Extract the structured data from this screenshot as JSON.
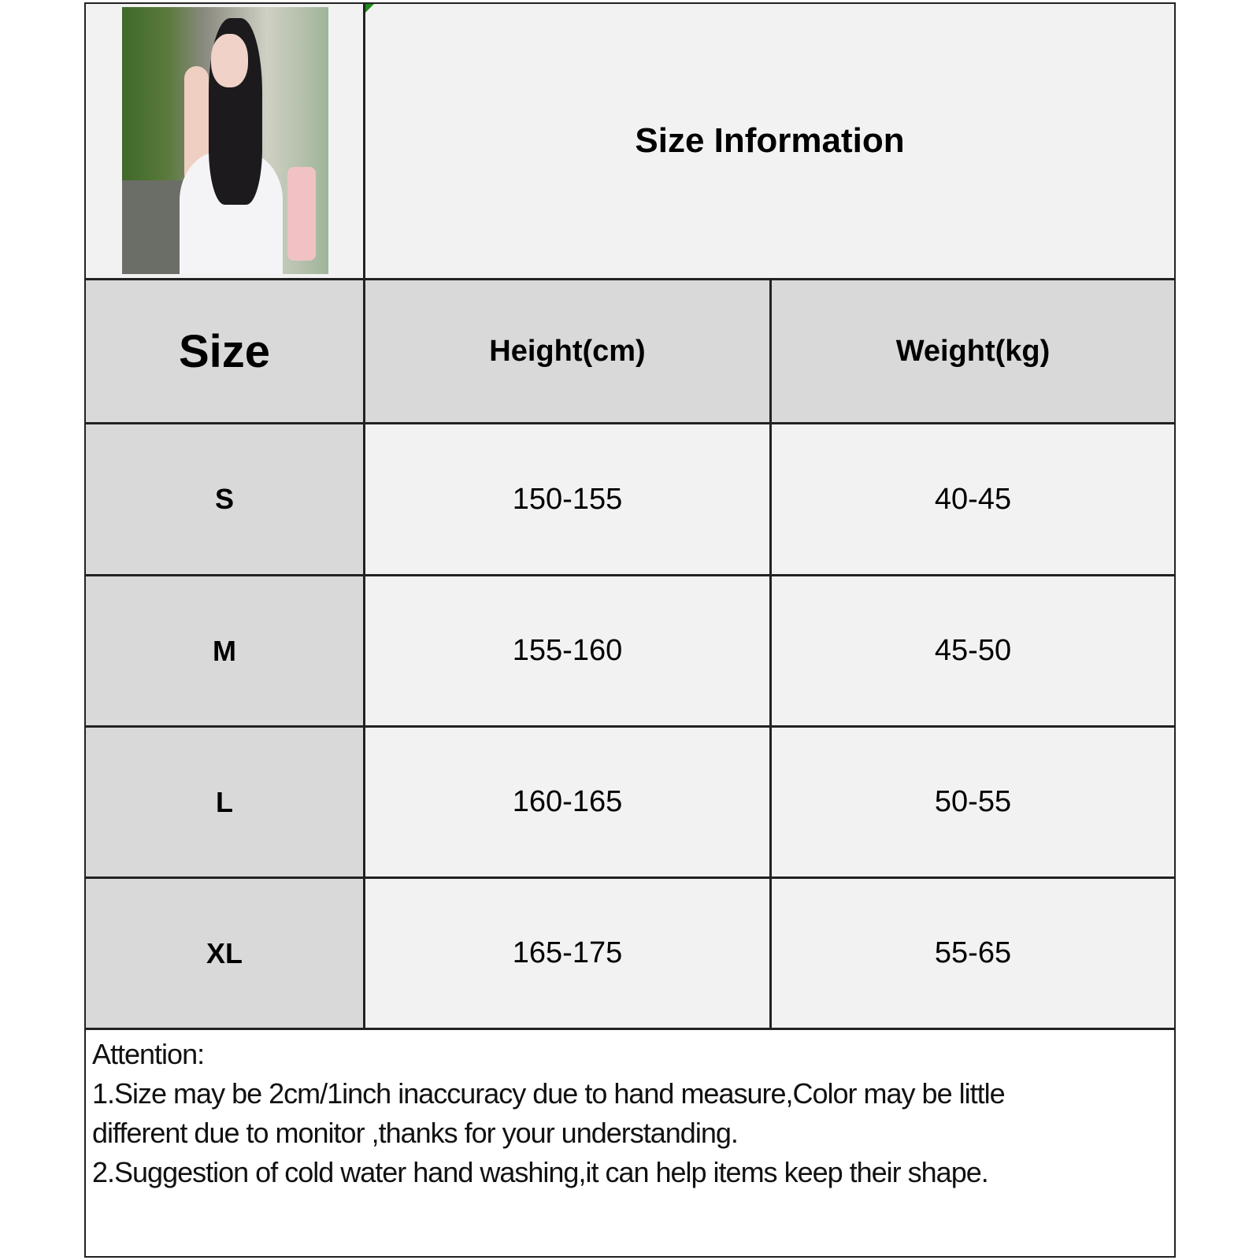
{
  "title": "Size Information",
  "table": {
    "headers": [
      "Size",
      "Height(cm)",
      "Weight(kg)"
    ],
    "rows": [
      {
        "size": "S",
        "height": "150-155",
        "weight": "40-45"
      },
      {
        "size": "M",
        "height": "155-160",
        "weight": "45-50"
      },
      {
        "size": "L",
        "height": "160-165",
        "weight": "50-55"
      },
      {
        "size": "XL",
        "height": "165-175",
        "weight": "55-65"
      }
    ]
  },
  "notes": {
    "heading": "Attention:",
    "lines": [
      "1.Size may be 2cm/1inch inaccuracy due to hand measure,Color may be little",
      "different due to monitor ,thanks for your understanding.",
      "2.Suggestion of cold water hand washing,it can help items keep their shape."
    ]
  },
  "colors": {
    "header_bg": "#d9d9d9",
    "cell_bg": "#f2f2f2",
    "border": "#222222"
  }
}
